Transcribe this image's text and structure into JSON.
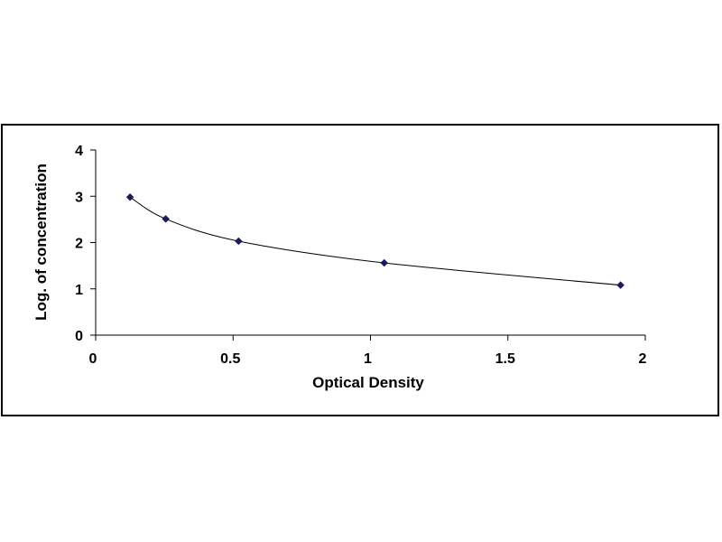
{
  "chart_data": {
    "type": "scatter",
    "xlabel": "Optical Density",
    "ylabel": "Log. of concentration",
    "xlim": [
      0,
      2
    ],
    "ylim": [
      0,
      4
    ],
    "x_ticks": [
      "0",
      "0.5",
      "1",
      "1.5",
      "2"
    ],
    "y_ticks": [
      "0",
      "1",
      "2",
      "3",
      "4"
    ],
    "series": [
      {
        "x": [
          0.125,
          0.255,
          0.52,
          1.05,
          1.91
        ],
        "y": [
          2.98,
          2.51,
          2.03,
          1.56,
          1.08
        ],
        "marker": "diamond",
        "line": "smooth"
      }
    ],
    "grid": false,
    "legend": "none",
    "colors": {
      "marker": "#1a1a5e",
      "line": "#000000",
      "axis": "#000000"
    }
  }
}
